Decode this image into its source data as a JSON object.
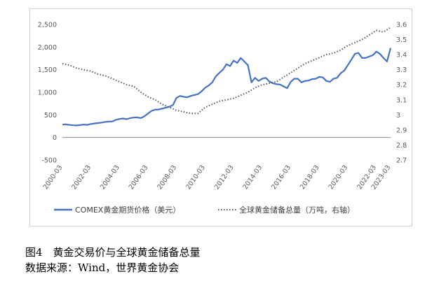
{
  "caption": {
    "figure_title": "图4　黄金交易价与全球黄金储备总量",
    "source": "数据来源：Wind，世界黄金协会"
  },
  "colors": {
    "price": "#4472C4",
    "reserves": "#595959",
    "axis": "#8c8c8c"
  },
  "chart_data": {
    "type": "line",
    "dual_axis": true,
    "title": "",
    "y_left": {
      "min": -500,
      "max": 2500,
      "ticks": [
        -500,
        0,
        500,
        1000,
        1500,
        2000,
        2500
      ],
      "tick_labels": [
        "-500",
        "0",
        "500",
        "1,000",
        "1,500",
        "2,000",
        "2,500"
      ]
    },
    "y_right": {
      "min": 2.7,
      "max": 3.6,
      "ticks": [
        2.7,
        2.8,
        2.9,
        3.0,
        3.1,
        3.2,
        3.3,
        3.4,
        3.5,
        3.6
      ],
      "tick_labels": [
        "2.7",
        "2.8",
        "2.9",
        "3",
        "3.1",
        "3.2",
        "3.3",
        "3.4",
        "3.5",
        "3.6"
      ]
    },
    "x_range": [
      2000.0,
      2023.0
    ],
    "x_tick_labels": [
      "2000-03",
      "2002-03",
      "2004-03",
      "2006-03",
      "2008-03",
      "2010-03",
      "2012-03",
      "2014-03",
      "2016-03",
      "2018-03",
      "2020-03",
      "2022-03",
      "2023-03"
    ],
    "x_ticks": [
      2000.0,
      2002.0,
      2004.0,
      2006.0,
      2008.0,
      2010.0,
      2012.0,
      2014.0,
      2016.0,
      2018.0,
      2020.0,
      2022.0,
      2023.0
    ],
    "legend": {
      "placement": "bottom"
    },
    "series": [
      {
        "name": "COMEX黄金期货价格（美元）",
        "axis": "left",
        "style": "solid",
        "x": [
          2000.0,
          2000.25,
          2000.5,
          2000.75,
          2001.0,
          2001.25,
          2001.5,
          2001.75,
          2002.0,
          2002.25,
          2002.5,
          2002.75,
          2003.0,
          2003.25,
          2003.5,
          2003.75,
          2004.0,
          2004.25,
          2004.5,
          2004.75,
          2005.0,
          2005.25,
          2005.5,
          2005.75,
          2006.0,
          2006.25,
          2006.5,
          2006.75,
          2007.0,
          2007.25,
          2007.5,
          2007.75,
          2008.0,
          2008.25,
          2008.5,
          2008.75,
          2009.0,
          2009.25,
          2009.5,
          2009.75,
          2010.0,
          2010.25,
          2010.5,
          2010.75,
          2011.0,
          2011.25,
          2011.5,
          2011.75,
          2012.0,
          2012.25,
          2012.5,
          2012.75,
          2013.0,
          2013.25,
          2013.5,
          2013.75,
          2014.0,
          2014.25,
          2014.5,
          2014.75,
          2015.0,
          2015.25,
          2015.5,
          2015.75,
          2016.0,
          2016.25,
          2016.5,
          2016.75,
          2017.0,
          2017.25,
          2017.5,
          2017.75,
          2018.0,
          2018.25,
          2018.5,
          2018.75,
          2019.0,
          2019.25,
          2019.5,
          2019.75,
          2020.0,
          2020.25,
          2020.5,
          2020.75,
          2021.0,
          2021.25,
          2021.5,
          2021.75,
          2022.0,
          2022.25,
          2022.5,
          2022.75,
          2023.0
        ],
        "values": [
          285,
          290,
          278,
          270,
          265,
          275,
          285,
          280,
          300,
          310,
          320,
          330,
          345,
          350,
          355,
          390,
          410,
          420,
          405,
          430,
          440,
          445,
          430,
          470,
          530,
          590,
          615,
          620,
          640,
          660,
          680,
          720,
          880,
          920,
          900,
          890,
          920,
          940,
          960,
          1020,
          1100,
          1150,
          1220,
          1350,
          1430,
          1500,
          1620,
          1580,
          1700,
          1650,
          1760,
          1680,
          1600,
          1220,
          1320,
          1250,
          1300,
          1320,
          1240,
          1200,
          1180,
          1170,
          1130,
          1090,
          1230,
          1300,
          1300,
          1220,
          1250,
          1260,
          1290,
          1300,
          1340,
          1330,
          1250,
          1230,
          1300,
          1320,
          1420,
          1480,
          1600,
          1720,
          1850,
          1870,
          1760,
          1760,
          1790,
          1820,
          1900,
          1850,
          1760,
          1680,
          1980
        ]
      },
      {
        "name": "全球黄金储备总量（万吨，右轴）",
        "axis": "right",
        "style": "dotted",
        "x": [
          2000.0,
          2000.5,
          2001.0,
          2001.5,
          2002.0,
          2002.5,
          2003.0,
          2003.5,
          2004.0,
          2004.5,
          2005.0,
          2005.5,
          2006.0,
          2006.5,
          2007.0,
          2007.5,
          2008.0,
          2008.5,
          2009.0,
          2009.5,
          2010.0,
          2010.5,
          2011.0,
          2011.5,
          2012.0,
          2012.5,
          2013.0,
          2013.5,
          2014.0,
          2014.5,
          2015.0,
          2015.5,
          2016.0,
          2016.5,
          2017.0,
          2017.5,
          2018.0,
          2018.5,
          2019.0,
          2019.5,
          2020.0,
          2020.5,
          2021.0,
          2021.5,
          2022.0,
          2022.5,
          2023.0
        ],
        "values": [
          3.34,
          3.33,
          3.31,
          3.3,
          3.29,
          3.27,
          3.26,
          3.24,
          3.22,
          3.2,
          3.19,
          3.15,
          3.12,
          3.1,
          3.07,
          3.05,
          3.03,
          3.02,
          3.01,
          3.01,
          3.05,
          3.07,
          3.09,
          3.1,
          3.11,
          3.13,
          3.15,
          3.18,
          3.2,
          3.21,
          3.22,
          3.25,
          3.28,
          3.31,
          3.34,
          3.36,
          3.38,
          3.4,
          3.41,
          3.43,
          3.46,
          3.48,
          3.5,
          3.53,
          3.56,
          3.55,
          3.58
        ]
      }
    ]
  }
}
